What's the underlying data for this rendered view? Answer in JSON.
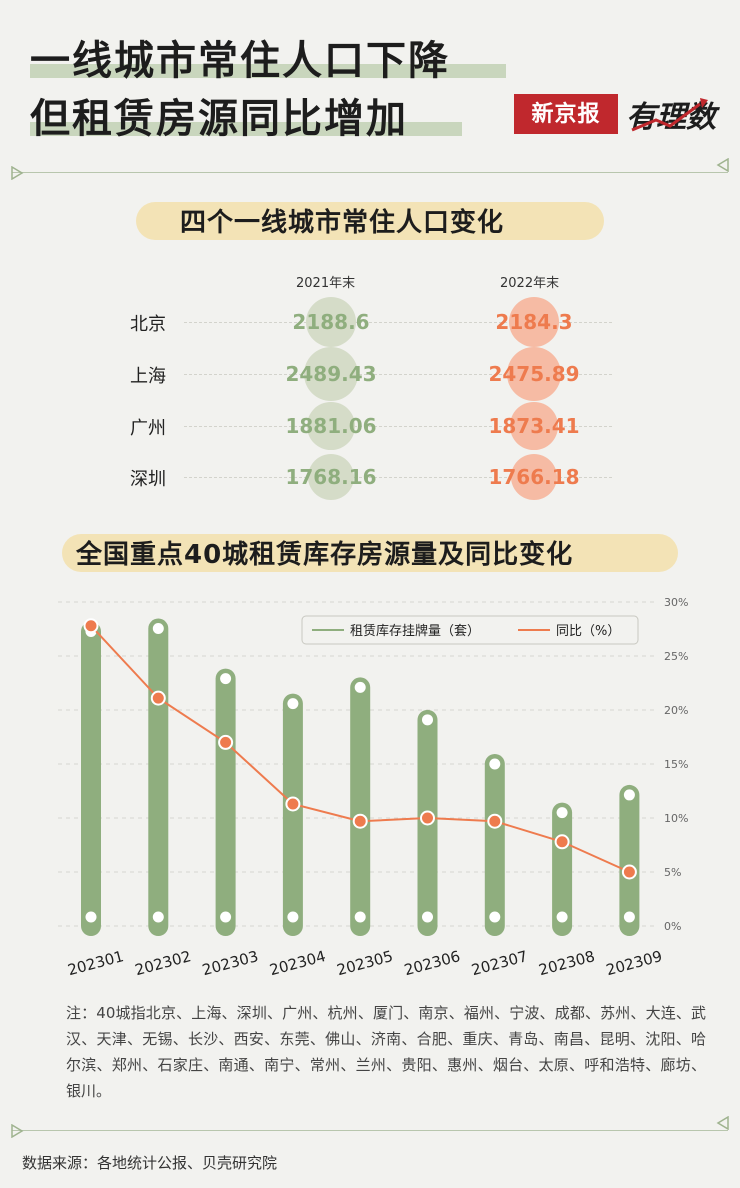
{
  "header": {
    "title_line1": "一线城市常住人口下降",
    "title_line2": "但租赁房源同比增加",
    "logo_brand": "新京报",
    "logo_column": "有理数"
  },
  "section1": {
    "title": "四个一线城市常住人口变化",
    "col_2021": "2021年末",
    "col_2022": "2022年末",
    "rows": [
      {
        "city": "北京",
        "v2021": "2188.6",
        "v2022": "2184.3"
      },
      {
        "city": "上海",
        "v2021": "2489.43",
        "v2022": "2475.89"
      },
      {
        "city": "广州",
        "v2021": "1881.06",
        "v2022": "1873.41"
      },
      {
        "city": "深圳",
        "v2021": "1768.16",
        "v2022": "1766.18"
      }
    ],
    "colors": {
      "c2021": "#8fae7e",
      "c2021_bubble": "#d5dcc8",
      "c2022": "#ee7b4e",
      "c2022_bubble": "#f6bba4"
    }
  },
  "section2": {
    "title": "全国重点40城租赁库存房源量及同比变化"
  },
  "chart_data": {
    "type": "bar",
    "categories": [
      "202301",
      "202302",
      "202303",
      "202304",
      "202305",
      "202306",
      "202307",
      "202308",
      "202309"
    ],
    "series": [
      {
        "name": "租赁库存挂牌量（套）",
        "type": "bar",
        "color": "#8fae7e",
        "values": [
          100,
          101,
          84,
          75.5,
          81,
          70,
          55,
          38.5,
          44.5
        ]
      },
      {
        "name": "同比（%）",
        "type": "line",
        "color": "#ee7b4e",
        "values": [
          27.8,
          21.1,
          17.0,
          11.3,
          9.7,
          10.0,
          9.7,
          7.8,
          5.0
        ]
      }
    ],
    "y2_ticks": [
      "30%",
      "25%",
      "20%",
      "15%",
      "10%",
      "5%",
      "0%"
    ],
    "y2lim": [
      0,
      30
    ],
    "ylim": [
      0,
      110
    ],
    "legend_position": "top-right",
    "grid": true
  },
  "footer": {
    "note": "注：40城指北京、上海、深圳、广州、杭州、厦门、南京、福州、宁波、成都、苏州、大连、武汉、天津、无锡、长沙、西安、东莞、佛山、济南、合肥、重庆、青岛、南昌、昆明、沈阳、哈尔滨、郑州、石家庄、南通、南宁、常州、兰州、贵阳、惠州、烟台、太原、呼和浩特、廊坊、银川。",
    "source": "数据来源：各地统计公报、贝壳研究院"
  }
}
